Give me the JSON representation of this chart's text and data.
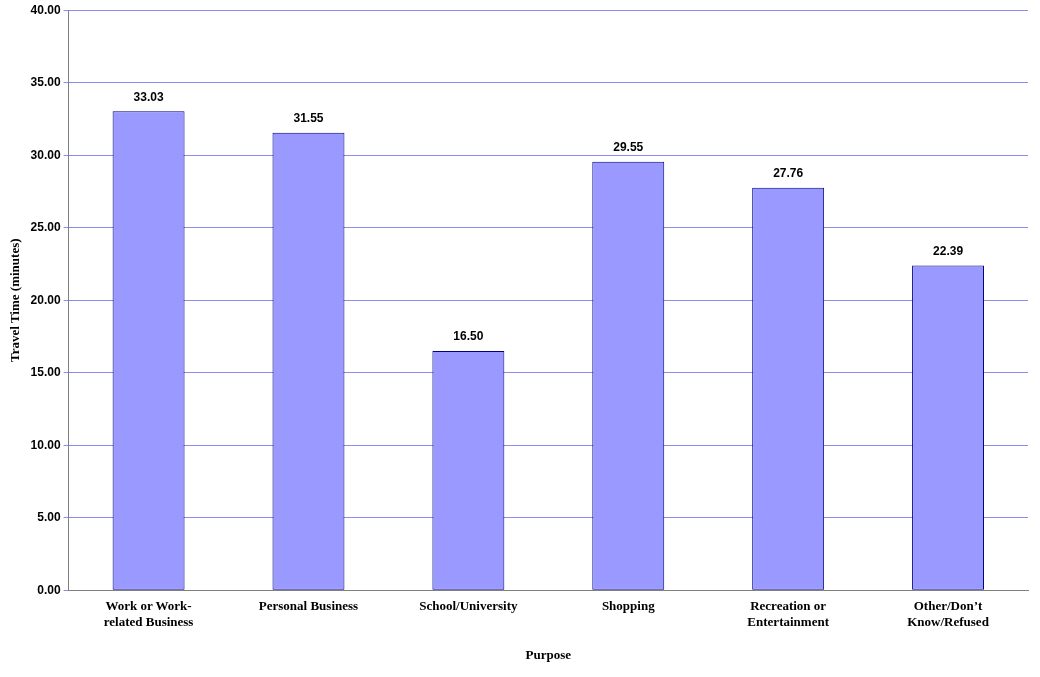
{
  "chart_data": {
    "type": "bar",
    "xlabel": "Purpose",
    "ylabel": "Travel Time (minutes)",
    "categories": [
      "Work or Work-related Business",
      "Personal Business",
      "School/University",
      "Shopping",
      "Recreation or Entertainment",
      "Other/Don’t Know/Refused"
    ],
    "values": [
      33.03,
      31.55,
      16.5,
      29.55,
      27.76,
      22.39
    ],
    "value_labels": [
      "33.03",
      "31.55",
      "16.50",
      "29.55",
      "27.76",
      "22.39"
    ],
    "color": "#9999ff",
    "ylim": [
      0,
      40
    ],
    "yticks": [
      {
        "value": 0,
        "label": "0.00"
      },
      {
        "value": 5,
        "label": "5.00"
      },
      {
        "value": 10,
        "label": "10.00"
      },
      {
        "value": 15,
        "label": "15.00"
      },
      {
        "value": 20,
        "label": "20.00"
      },
      {
        "value": 25,
        "label": "25.00"
      },
      {
        "value": 30,
        "label": "30.00"
      },
      {
        "value": 35,
        "label": "35.00"
      },
      {
        "value": 40,
        "label": "40.00"
      }
    ],
    "grid": "y",
    "legend": false
  }
}
